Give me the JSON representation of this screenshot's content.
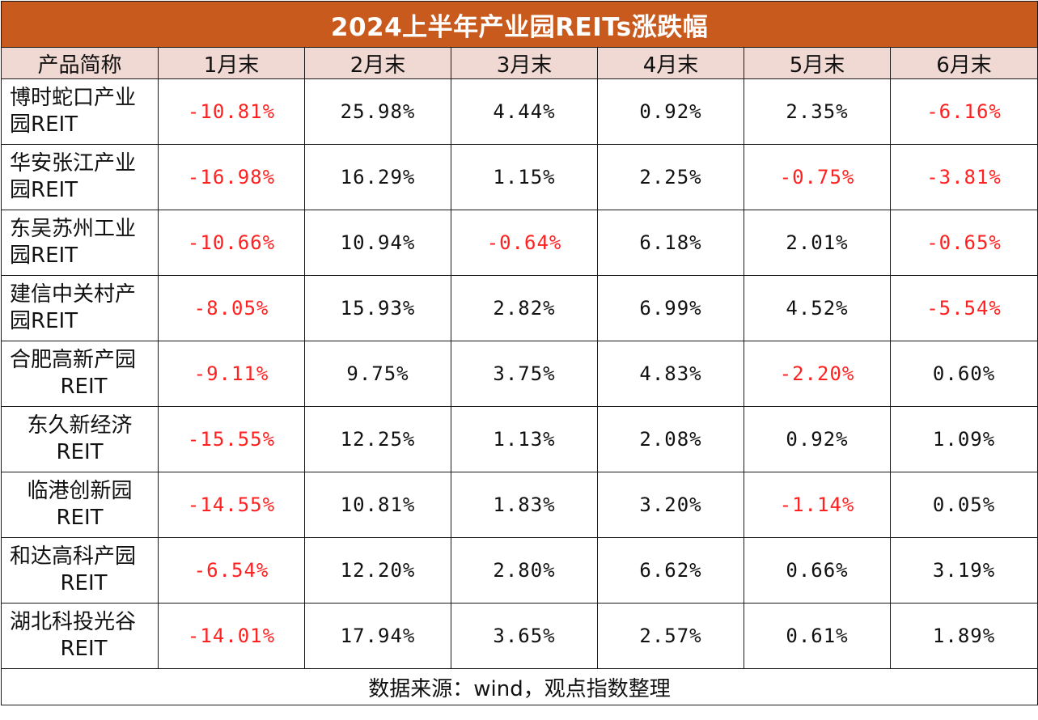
{
  "title": "2024上半年产业园REITs涨跌幅",
  "headers": [
    "产品简称",
    "1月末",
    "2月末",
    "3月末",
    "4月末",
    "5月末",
    "6月末"
  ],
  "rows": [
    {
      "name_line1": "博时蛇口产业",
      "name_line2": "园REIT",
      "values": [
        "-10.81%",
        "25.98%",
        "4.44%",
        "0.92%",
        "2.35%",
        "-6.16%"
      ]
    },
    {
      "name_line1": "华安张江产业",
      "name_line2": "园REIT",
      "values": [
        "-16.98%",
        "16.29%",
        "1.15%",
        "2.25%",
        "-0.75%",
        "-3.81%"
      ]
    },
    {
      "name_line1": "东吴苏州工业",
      "name_line2": "园REIT",
      "values": [
        "-10.66%",
        "10.94%",
        "-0.64%",
        "6.18%",
        "2.01%",
        "-0.65%"
      ]
    },
    {
      "name_line1": "建信中关村产",
      "name_line2": "园REIT",
      "values": [
        "-8.05%",
        "15.93%",
        "2.82%",
        "6.99%",
        "4.52%",
        "-5.54%"
      ]
    },
    {
      "name_line1": "合肥高新产园",
      "name_line2": "REIT",
      "values": [
        "-9.11%",
        "9.75%",
        "3.75%",
        "4.83%",
        "-2.20%",
        "0.60%"
      ]
    },
    {
      "name_line1": "东久新经济",
      "name_line2": "REIT",
      "values": [
        "-15.55%",
        "12.25%",
        "1.13%",
        "2.08%",
        "0.92%",
        "1.09%"
      ]
    },
    {
      "name_line1": "临港创新园",
      "name_line2": "REIT",
      "values": [
        "-14.55%",
        "10.81%",
        "1.83%",
        "3.20%",
        "-1.14%",
        "0.05%"
      ]
    },
    {
      "name_line1": "和达高科产园",
      "name_line2": "REIT",
      "values": [
        "-6.54%",
        "12.20%",
        "2.80%",
        "6.62%",
        "0.66%",
        "3.19%"
      ]
    },
    {
      "name_line1": "湖北科投光谷",
      "name_line2": "REIT",
      "values": [
        "-14.01%",
        "17.94%",
        "3.65%",
        "2.57%",
        "0.61%",
        "1.89%"
      ]
    }
  ],
  "footer": "数据来源：wind，观点指数整理",
  "colors": {
    "title_bg": "#c85a1e",
    "header_bg": "#f0d8d3",
    "negative": "#ff2020"
  }
}
